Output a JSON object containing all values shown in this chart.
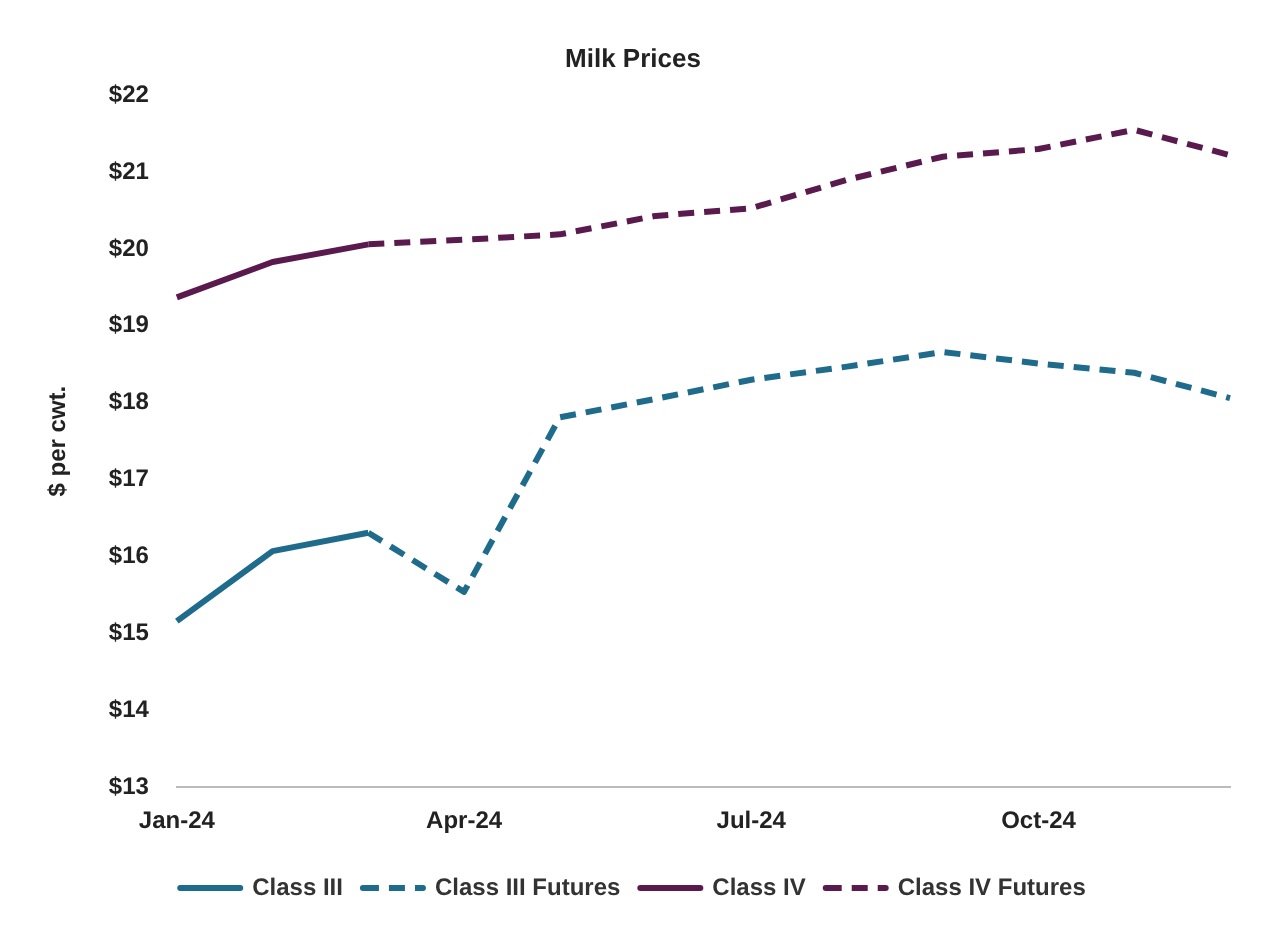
{
  "chart_data": {
    "type": "line",
    "title": "Milk Prices",
    "ylabel": "$ per cwt.",
    "categories": [
      "Jan-24",
      null,
      null,
      "Apr-24",
      null,
      null,
      "Jul-24",
      null,
      null,
      "Oct-24",
      null,
      null
    ],
    "series": [
      {
        "name": "Class III",
        "color": "#1f6b8c",
        "line_style": "solid",
        "values": [
          15.16,
          16.07,
          16.31,
          null,
          null,
          null,
          null,
          null,
          null,
          null,
          null,
          null
        ]
      },
      {
        "name": "Class III Futures",
        "color": "#1f6b8c",
        "line_style": "dashed",
        "values": [
          null,
          null,
          16.31,
          15.54,
          17.81,
          18.05,
          18.3,
          18.47,
          18.66,
          18.51,
          18.39,
          18.06
        ]
      },
      {
        "name": "Class IV",
        "color": "#5a1a4e",
        "line_style": "solid",
        "values": [
          19.37,
          19.83,
          20.06,
          null,
          null,
          null,
          null,
          null,
          null,
          null,
          null,
          null
        ]
      },
      {
        "name": "Class IV Futures",
        "color": "#5a1a4e",
        "line_style": "dashed",
        "values": [
          null,
          null,
          20.06,
          20.12,
          20.19,
          20.43,
          20.53,
          20.9,
          21.2,
          21.3,
          21.55,
          21.22
        ]
      }
    ],
    "ylim": [
      13,
      22
    ],
    "yticks": [
      {
        "value": 13,
        "label": "$13"
      },
      {
        "value": 14,
        "label": "$14"
      },
      {
        "value": 15,
        "label": "$15"
      },
      {
        "value": 16,
        "label": "$16"
      },
      {
        "value": 17,
        "label": "$17"
      },
      {
        "value": 18,
        "label": "$18"
      },
      {
        "value": 19,
        "label": "$19"
      },
      {
        "value": 20,
        "label": "$20"
      },
      {
        "value": 21,
        "label": "$21"
      },
      {
        "value": 22,
        "label": "$22"
      }
    ],
    "grid": false,
    "legend": "bottom",
    "marker": "none"
  }
}
